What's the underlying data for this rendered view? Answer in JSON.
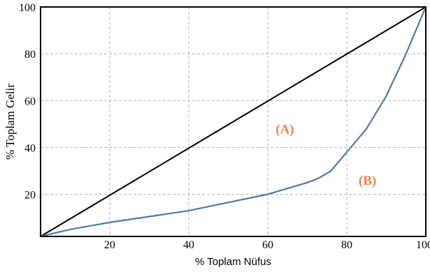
{
  "chart_data": {
    "type": "line",
    "title": "",
    "xlabel": "% Toplam Nüfus",
    "ylabel": "% Toplam Gelir",
    "xlim": [
      2.5,
      100
    ],
    "ylim": [
      2,
      100
    ],
    "x_ticks": [
      20,
      40,
      60,
      80,
      100
    ],
    "y_ticks": [
      20,
      40,
      60,
      80,
      100
    ],
    "x_tick_labels": [
      "20",
      "40",
      "60",
      "80",
      "100"
    ],
    "y_tick_labels": [
      "20",
      "40",
      "60",
      "80",
      "100"
    ],
    "grid": true,
    "series": [
      {
        "color": "#000000",
        "x": [
          2.5,
          100
        ],
        "y": [
          2,
          100
        ]
      },
      {
        "color": "#4d7aa6",
        "x": [
          2.5,
          10,
          20,
          30,
          40,
          50,
          60,
          65,
          70,
          73,
          76,
          80,
          85,
          90,
          95,
          100
        ],
        "y": [
          2,
          5,
          8,
          10.5,
          13,
          16.5,
          20,
          22.5,
          25,
          27,
          30,
          38,
          48,
          62,
          80,
          100
        ]
      }
    ],
    "annotations": [
      {
        "text": "(A)",
        "x": 62,
        "y": 46,
        "color": "#e8834a"
      },
      {
        "text": "(B)",
        "x": 83,
        "y": 24,
        "color": "#e8834a"
      }
    ]
  }
}
